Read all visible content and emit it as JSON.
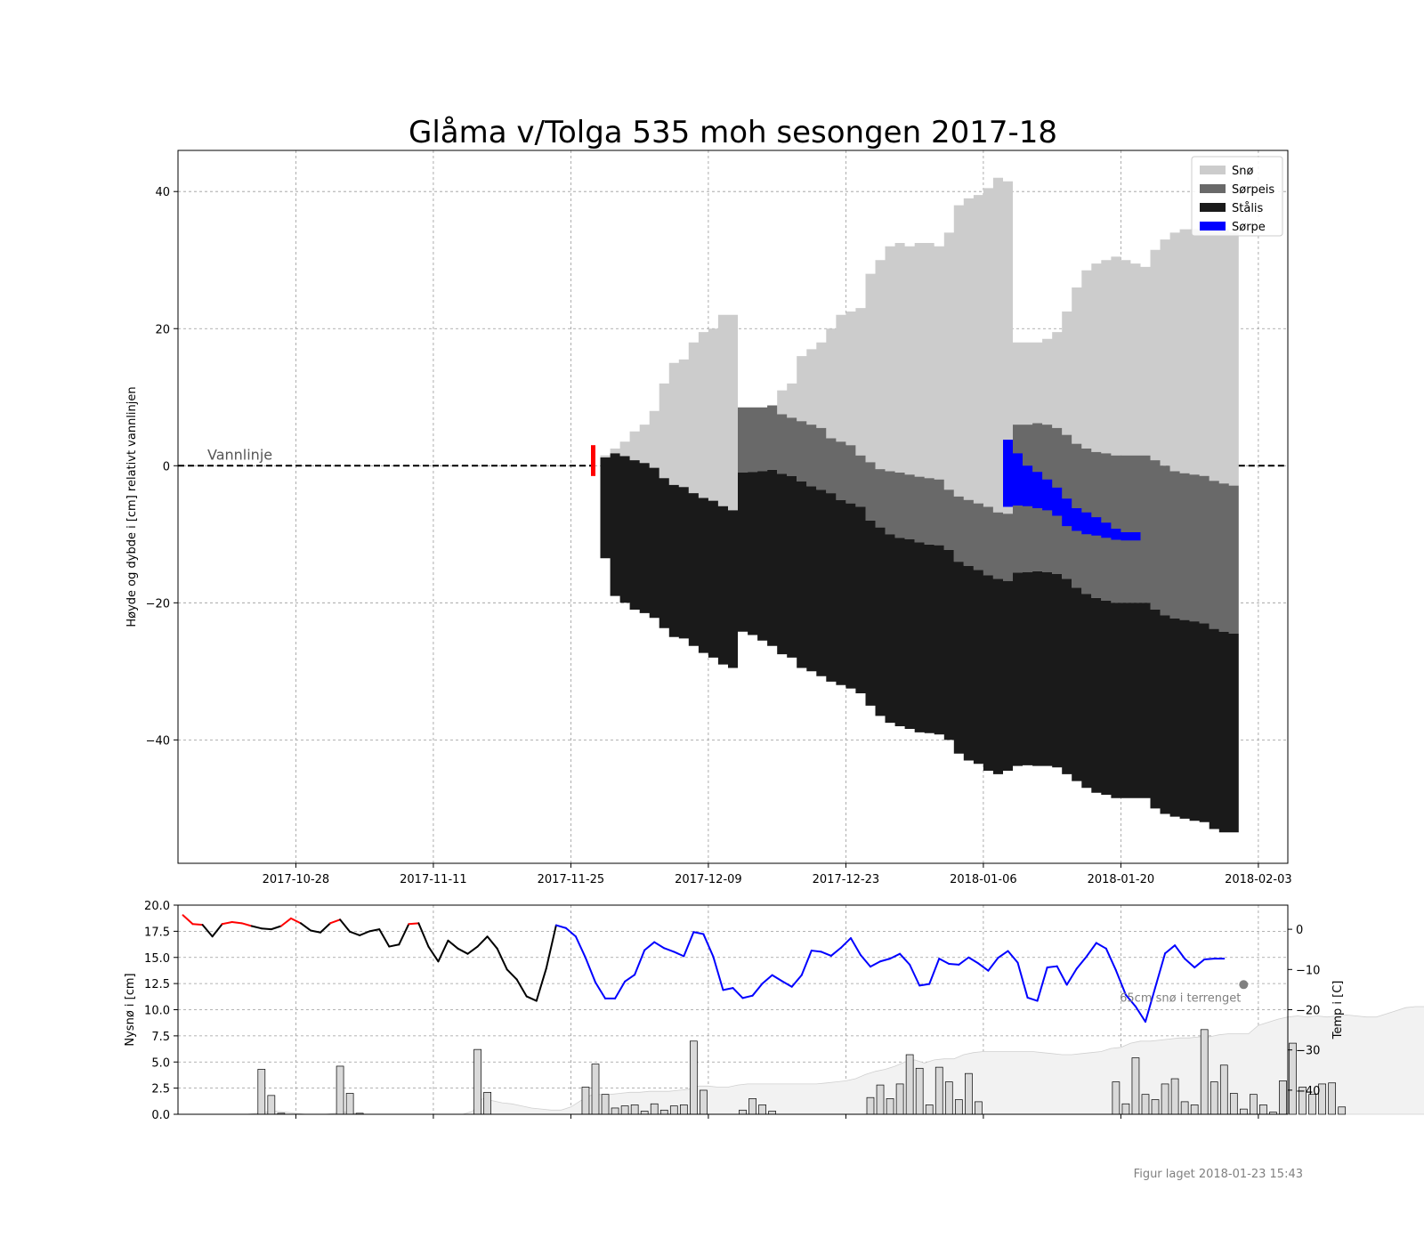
{
  "chart_data": [
    {
      "type": "area",
      "title": "Glåma v/Tolga 535 moh sesongen 2017-18",
      "ylabel": "Høyde og dybde i [cm] relativt vannlinjen",
      "xlabel": "",
      "x_ticks": [
        "2017-10-28",
        "2017-11-11",
        "2017-11-25",
        "2017-12-09",
        "2017-12-23",
        "2018-01-06",
        "2018-01-20",
        "2018-02-03"
      ],
      "y_ticks": [
        40,
        20,
        0,
        -20,
        -40
      ],
      "xlim": [
        "2017-10-16",
        "2018-02-06"
      ],
      "ylim": [
        -58,
        46
      ],
      "grid": true,
      "legend_position": "top-right",
      "annotation": "Vannlinje",
      "series": [
        {
          "name": "Snø",
          "color": "#cccccc"
        },
        {
          "name": "Sørpeis",
          "color": "#696969"
        },
        {
          "name": "Stålis",
          "color": "#1a1a1a"
        },
        {
          "name": "Sørpe",
          "color": "#0000ff"
        }
      ],
      "dates": [
        "2017-11-28",
        "2017-11-29",
        "2017-11-30",
        "2017-12-01",
        "2017-12-02",
        "2017-12-03",
        "2017-12-04",
        "2017-12-05",
        "2017-12-06",
        "2017-12-07",
        "2017-12-08",
        "2017-12-09",
        "2017-12-10",
        "2017-12-11",
        "2017-12-12",
        "2017-12-13",
        "2017-12-14",
        "2017-12-15",
        "2017-12-16",
        "2017-12-17",
        "2017-12-18",
        "2017-12-19",
        "2017-12-20",
        "2017-12-21",
        "2017-12-22",
        "2017-12-23",
        "2017-12-24",
        "2017-12-25",
        "2017-12-26",
        "2017-12-27",
        "2017-12-28",
        "2017-12-29",
        "2017-12-30",
        "2017-12-31",
        "2018-01-01",
        "2018-01-02",
        "2018-01-03",
        "2018-01-04",
        "2018-01-05",
        "2018-01-06",
        "2018-01-07",
        "2018-01-08",
        "2018-01-09",
        "2018-01-10",
        "2018-01-11",
        "2018-01-12",
        "2018-01-13",
        "2018-01-14",
        "2018-01-15",
        "2018-01-16",
        "2018-01-17",
        "2018-01-18",
        "2018-01-19",
        "2018-01-20",
        "2018-01-21",
        "2018-01-22",
        "2018-01-23",
        "2018-01-24",
        "2018-01-25",
        "2018-01-26",
        "2018-01-27",
        "2018-01-28",
        "2018-01-29",
        "2018-01-30",
        "2018-01-31"
      ],
      "snow_top": [
        1.5,
        2.5,
        3.5,
        5,
        6,
        8,
        12,
        15,
        15.5,
        18,
        19.5,
        20,
        22,
        22,
        8.5,
        8.5,
        8.5,
        8.8,
        11,
        12,
        16,
        17,
        18,
        20,
        22,
        22.5,
        23,
        28,
        30,
        32,
        32.5,
        32,
        32.5,
        32.5,
        32,
        34,
        38,
        39,
        39.5,
        40.5,
        42,
        41.5,
        18,
        18,
        18,
        18.5,
        19.5,
        22.5,
        26,
        28.5,
        29.5,
        30,
        30.5,
        30,
        29.5,
        29,
        31.5,
        33,
        34,
        34.5,
        34.5,
        34.5,
        34.5,
        34.5,
        34
      ],
      "slushice_top": [
        1.2,
        1.8,
        1.4,
        0.8,
        0.4,
        -0.3,
        -1.8,
        -2.8,
        -3.1,
        -4,
        -4.7,
        -5.1,
        -5.9,
        -6.5,
        8.5,
        8.5,
        8.5,
        8.8,
        7.5,
        7,
        6.5,
        6,
        5.5,
        4,
        3.5,
        3,
        1.5,
        0.5,
        -0.5,
        -0.8,
        -1,
        -1.3,
        -1.6,
        -1.8,
        -2,
        -3.5,
        -4.5,
        -5,
        -5.5,
        -6,
        -6.8,
        -7,
        6,
        6,
        6.2,
        6,
        5.5,
        4.5,
        3.2,
        2.5,
        2,
        1.8,
        1.5,
        1.5,
        1.5,
        1.5,
        0.8,
        0,
        -0.8,
        -1.1,
        -1.3,
        -1.5,
        -2.2,
        -2.6,
        -2.9
      ],
      "blackice_top": [
        1.2,
        1.8,
        1.4,
        0.8,
        0.4,
        -0.3,
        -1.8,
        -2.8,
        -3.1,
        -4,
        -4.7,
        -5.1,
        -5.9,
        -6.5,
        -1,
        -0.9,
        -0.8,
        -0.6,
        -1.2,
        -1.5,
        -2.3,
        -3,
        -3.5,
        -4,
        -5,
        -5.5,
        -6,
        -8,
        -9,
        -10,
        -10.5,
        -10.7,
        -11.2,
        -11.5,
        -11.6,
        -12.3,
        -14,
        -14.6,
        -15.2,
        -16,
        -16.5,
        -16.8,
        -15.6,
        -15.5,
        -15.4,
        -15.5,
        -15.8,
        -16.5,
        -17.8,
        -18.7,
        -19.3,
        -19.7,
        -20,
        -20,
        -20,
        -20,
        -21,
        -21.8,
        -22.3,
        -22.5,
        -22.7,
        -23,
        -23.8,
        -24.2,
        -24.5
      ],
      "ice_bottom": [
        -13.5,
        -19,
        -20,
        -21,
        -21.5,
        -22.2,
        -23.7,
        -25,
        -25.2,
        -26.3,
        -27.3,
        -28,
        -29,
        -29.5,
        -24.2,
        -24.7,
        -25.5,
        -26.3,
        -27.5,
        -28,
        -29.5,
        -30,
        -30.7,
        -31.5,
        -32,
        -32.5,
        -33.2,
        -35,
        -36.5,
        -37.5,
        -38,
        -38.4,
        -38.9,
        -39,
        -39.2,
        -40,
        -42,
        -43,
        -43.5,
        -44.5,
        -45,
        -44.5,
        -43.8,
        -43.7,
        -43.8,
        -43.8,
        -44,
        -45,
        -46,
        -47,
        -47.7,
        -48,
        -48.5,
        -48.5,
        -48.5,
        -48.5,
        -50,
        -50.8,
        -51.2,
        -51.5,
        -51.8,
        -52,
        -53,
        -53.5,
        -53.5
      ],
      "slush": {
        "dates": [
          "2018-01-08",
          "2018-01-09",
          "2018-01-10",
          "2018-01-11",
          "2018-01-12",
          "2018-01-13",
          "2018-01-14",
          "2018-01-15",
          "2018-01-16",
          "2018-01-17",
          "2018-01-18",
          "2018-01-19",
          "2018-01-20",
          "2018-01-21"
        ],
        "top": [
          3.8,
          1.8,
          0,
          -0.9,
          -2,
          -3.2,
          -4.8,
          -6.2,
          -6.8,
          -7.5,
          -8.3,
          -9.2,
          -9.7,
          -9.7
        ],
        "bottom": [
          -6,
          -5.8,
          -5.9,
          -6.2,
          -6.5,
          -7.3,
          -8.8,
          -9.5,
          -10,
          -10.2,
          -10.5,
          -10.8,
          -10.9,
          -10.9
        ]
      },
      "marker_date": "2017-11-27",
      "marker_range": [
        -1.5,
        3
      ]
    },
    {
      "type": "bar",
      "ylabel": "Nysnø i [cm]",
      "y2label": "Temp i [C]",
      "y_ticks": [
        "0.0",
        "2.5",
        "5.0",
        "7.5",
        "10.0",
        "12.5",
        "15.0",
        "17.5",
        "20.0"
      ],
      "y2_ticks": [
        "0",
        "−10",
        "−20",
        "−30",
        "−40"
      ],
      "ylim": [
        0,
        20
      ],
      "y2lim": [
        -46,
        6
      ],
      "annotation": "65cm snø i terrenget",
      "annotation_date": "2018-02-01",
      "annotation_value": 12.4,
      "start_date": "2017-10-16",
      "snowfall_cm": [
        0,
        0,
        0,
        0,
        0,
        0,
        0,
        0,
        4.3,
        1.8,
        0.1,
        0,
        0,
        0,
        0,
        0,
        4.6,
        2,
        0.1,
        0,
        0,
        0,
        0,
        0,
        0,
        0,
        0,
        0,
        0,
        0,
        6.2,
        2.1,
        0,
        0,
        0,
        0,
        0,
        0,
        0,
        0,
        0,
        2.6,
        4.8,
        1.9,
        0.6,
        0.8,
        0.9,
        0.3,
        1,
        0.4,
        0.8,
        0.9,
        7,
        2.3,
        0,
        0,
        0,
        0.4,
        1.5,
        0.9,
        0.3,
        0,
        0,
        0,
        0,
        0,
        0,
        0,
        0,
        0,
        1.6,
        2.8,
        1.5,
        2.9,
        5.7,
        4.4,
        0.9,
        4.5,
        3.1,
        1.4,
        3.9,
        1.2,
        0,
        0,
        0,
        0,
        0,
        0,
        0,
        0,
        0,
        0,
        0,
        0,
        0,
        3.1,
        1,
        5.4,
        1.9,
        1.4,
        2.9,
        3.4,
        1.2,
        0.9,
        8.1,
        3.1,
        4.7,
        2,
        0.5,
        1.9,
        0.9,
        0.2,
        3.2,
        6.8,
        2.6,
        1.9,
        2.9,
        3,
        0.7,
        0,
        0,
        0,
        0,
        0,
        0,
        0,
        0,
        0,
        0,
        0.6,
        1.2,
        4.8,
        5.1,
        3.9,
        1.8,
        1.6,
        1.3,
        0.2,
        0,
        0,
        0,
        0.1,
        4.3,
        2.4,
        2.2,
        0.7,
        0.6,
        4.2,
        1.6,
        0.5,
        0
      ],
      "snow_on_ground_cm": [
        0,
        0,
        0,
        0,
        0,
        0,
        0,
        0,
        0.1,
        0.2,
        0.3,
        0.2,
        0.1,
        0,
        0,
        0,
        0.1,
        0.2,
        0.1,
        0,
        0,
        0,
        0,
        0,
        0,
        0,
        0,
        0,
        0,
        0,
        0.3,
        1.5,
        1.3,
        1.1,
        1,
        0.8,
        0.6,
        0.5,
        0.4,
        0.4,
        0.7,
        1.3,
        1.8,
        1.9,
        1.9,
        2,
        2.1,
        2.1,
        2.2,
        2.2,
        2.2,
        2.3,
        2.4,
        2.7,
        2.7,
        2.6,
        2.6,
        2.8,
        2.9,
        2.9,
        2.9,
        2.9,
        2.9,
        2.9,
        2.9,
        2.9,
        3,
        3.1,
        3.2,
        3.4,
        3.8,
        4.1,
        4.3,
        4.6,
        5,
        5.2,
        4.9,
        5.2,
        5.3,
        5.3,
        5.7,
        5.9,
        6,
        6,
        6,
        6,
        6,
        6,
        5.9,
        5.8,
        5.7,
        5.7,
        5.8,
        5.9,
        6,
        6.3,
        6.4,
        6.8,
        7,
        7,
        7.1,
        7.2,
        7.3,
        7.3,
        7.4,
        7.4,
        7.6,
        7.7,
        7.7,
        7.7,
        8.5,
        8.8,
        9.1,
        9.3,
        9.4,
        9.3,
        9.4,
        9.3,
        9.4,
        9.5,
        9.4,
        9.3,
        9.3,
        9.6,
        9.9,
        10.2,
        10.3,
        10.3,
        10.4,
        10.5,
        10.5,
        10.6,
        10.5,
        10.4,
        10.2,
        10.1,
        10,
        10,
        9.9,
        9.9,
        10.4,
        10.9,
        11.3,
        11.5,
        11.6,
        11.6,
        11.6,
        11.6,
        11.6,
        11.5,
        11.5,
        11.6,
        11.7,
        11.8,
        11.8,
        11.8,
        11.7,
        11.7,
        11.9,
        12,
        12.3,
        12.4
      ],
      "temp_c": [
        3.5,
        1.3,
        1.1,
        -1.8,
        1.3,
        1.8,
        1.5,
        0.8,
        0.2,
        0,
        0.8,
        2.7,
        1.5,
        -0.3,
        -0.8,
        1.5,
        2.4,
        -0.6,
        -1.5,
        -0.5,
        0,
        -4.3,
        -3.8,
        1.3,
        1.5,
        -4.3,
        -8,
        -2.8,
        -4.8,
        -6.1,
        -4.3,
        -1.8,
        -4.8,
        -10,
        -12.5,
        -16.7,
        -17.8,
        -9.7,
        1,
        0.3,
        -1.8,
        -7.1,
        -13.2,
        -17.2,
        -17.2,
        -13,
        -11.3,
        -5.2,
        -3.2,
        -4.7,
        -5.6,
        -6.7,
        -0.7,
        -1.2,
        -6.8,
        -15.1,
        -14.6,
        -17.1,
        -16.5,
        -13.5,
        -11.4,
        -12.9,
        -14.3,
        -11.4,
        -5.3,
        -5.6,
        -6.6,
        -4.6,
        -2.2,
        -6.4,
        -9.3,
        -8,
        -7.3,
        -6.1,
        -8.8,
        -14,
        -13.6,
        -7.3,
        -8.6,
        -8.8,
        -7,
        -8.5,
        -10.3,
        -7.1,
        -5.4,
        -8.3,
        -17,
        -17.8,
        -9.5,
        -9.2,
        -13.8,
        -9.8,
        -6.8,
        -3.4,
        -4.8,
        -10.2,
        -16.3,
        -19.2,
        -23,
        -14.5,
        -6,
        -4,
        -7.3,
        -9.5,
        -7.5,
        -7.3,
        -7.3
      ],
      "temp_colors": {
        "above_zero": "#ff0000",
        "neutral": "#000000",
        "below_zero": "#0000ff"
      }
    }
  ],
  "footer": "Figur laget 2018-01-23 15:43"
}
